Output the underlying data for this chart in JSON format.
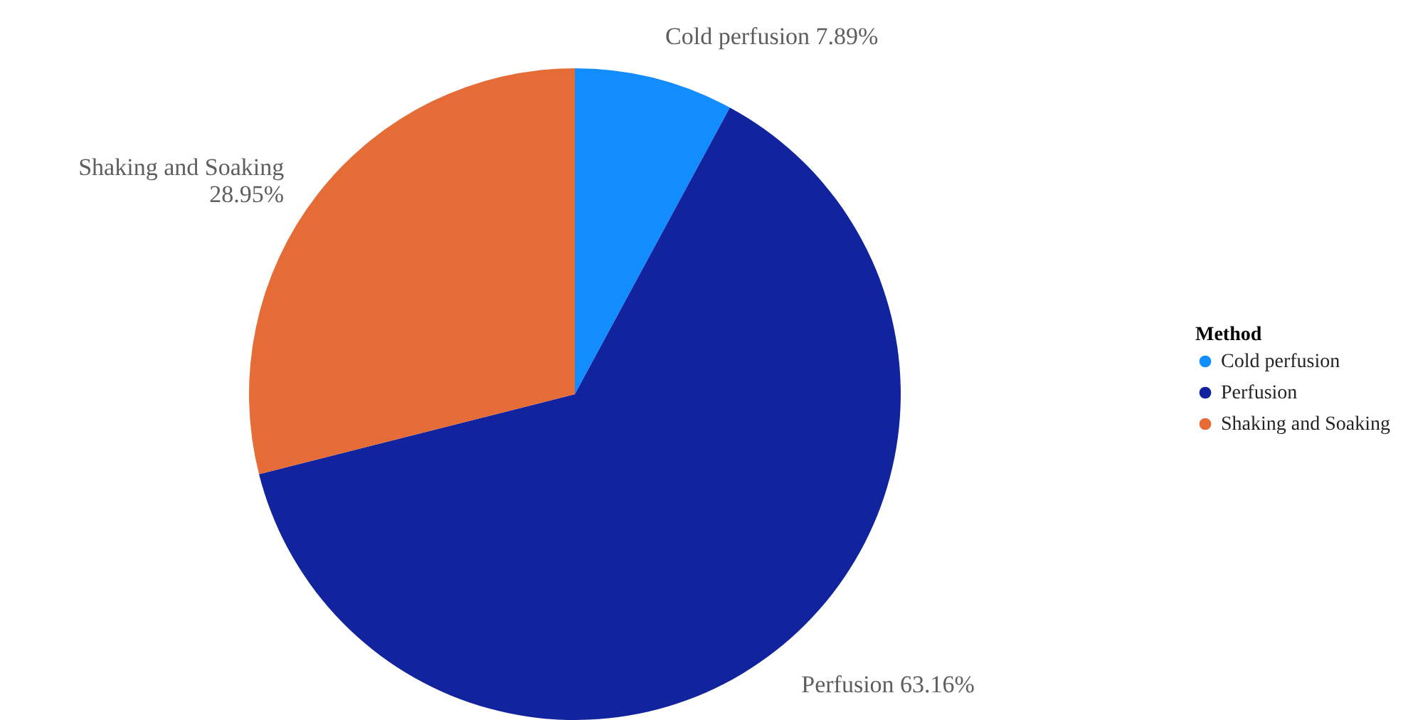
{
  "chart_data": {
    "type": "pie",
    "legend_title": "Method",
    "categories": [
      "Cold perfusion",
      "Perfusion",
      "Shaking and Soaking"
    ],
    "values": [
      7.89,
      63.16,
      28.95
    ],
    "value_labels": [
      "7.89%",
      "63.16%",
      "28.95%"
    ],
    "colors": [
      "#118dff",
      "#12239e",
      "#e66c37"
    ],
    "legend": "right"
  }
}
